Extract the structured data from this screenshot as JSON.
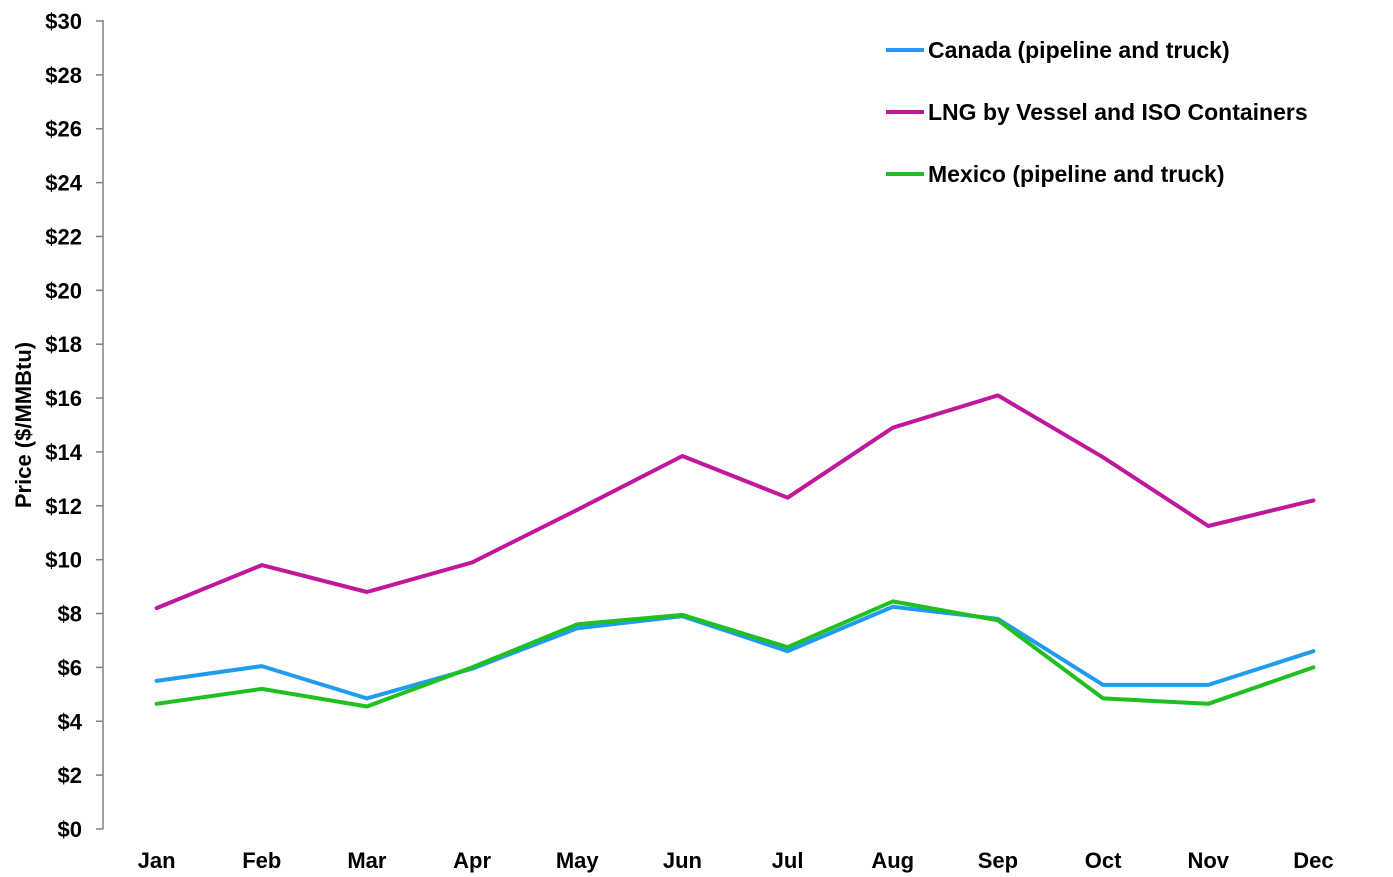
{
  "chart_data": {
    "type": "line",
    "title": "",
    "ylabel": "Price ($/MMBtu)",
    "xlabel": "",
    "categories": [
      "Jan",
      "Feb",
      "Mar",
      "Apr",
      "May",
      "Jun",
      "Jul",
      "Aug",
      "Sep",
      "Oct",
      "Nov",
      "Dec"
    ],
    "ylim": [
      0,
      30
    ],
    "y_ticks": [
      0,
      2,
      4,
      6,
      8,
      10,
      12,
      14,
      16,
      18,
      20,
      22,
      24,
      26,
      28,
      30
    ],
    "y_tick_labels": [
      "$0",
      "$2",
      "$4",
      "$6",
      "$8",
      "$10",
      "$12",
      "$14",
      "$16",
      "$18",
      "$20",
      "$22",
      "$24",
      "$26",
      "$28",
      "$30"
    ],
    "grid": false,
    "legend_position": "top-right",
    "series": [
      {
        "name": "Canada (pipeline and truck)",
        "color": "#1f9bef",
        "values": [
          5.5,
          6.05,
          4.85,
          5.95,
          7.45,
          7.9,
          6.6,
          8.25,
          7.8,
          5.35,
          5.35,
          6.6
        ]
      },
      {
        "name": "LNG by Vessel and ISO Containers",
        "color": "#c0179c",
        "values": [
          8.2,
          9.8,
          8.8,
          9.9,
          11.85,
          13.85,
          12.3,
          14.9,
          16.1,
          13.8,
          11.25,
          12.2
        ]
      },
      {
        "name": "Mexico (pipeline and truck)",
        "color": "#1fc01f",
        "values": [
          4.65,
          5.2,
          4.55,
          6.0,
          7.6,
          7.95,
          6.75,
          8.45,
          7.75,
          4.85,
          4.65,
          6.0
        ]
      }
    ]
  }
}
